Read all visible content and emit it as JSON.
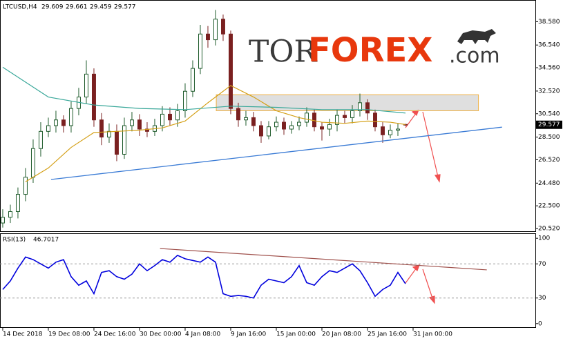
{
  "logo": {
    "part1": "TOR",
    "part2": "FOREX",
    "part3": ".com"
  },
  "chart_data": [
    {
      "type": "candlestick",
      "title": "LTCUSD,H4",
      "quote": [
        29.609,
        29.661,
        29.459,
        29.577
      ],
      "open": [
        21,
        21.5,
        22,
        23.5,
        25,
        27.5,
        29,
        29.5,
        30,
        29.5,
        31,
        32,
        34,
        30,
        28.5,
        29,
        27,
        29.5,
        30,
        29.2,
        29,
        29.5,
        30.5,
        30,
        30.8,
        32.5,
        34.5,
        37.5,
        37,
        38.8,
        37.5,
        31,
        30,
        30.2,
        29.5,
        28.6,
        29.4,
        29.8,
        29.2,
        29.5,
        29.8,
        30.6,
        29.4,
        29.2,
        29.6,
        30.4,
        30.2,
        30.8,
        31.5,
        30.6,
        29.4,
        28.7,
        29.1,
        29.609
      ],
      "high": [
        22.2,
        22.6,
        24.1,
        25.8,
        28.3,
        29.8,
        30.2,
        30.8,
        30.4,
        31.6,
        32.8,
        35.2,
        34.5,
        30.6,
        29.7,
        29.6,
        30.2,
        30.7,
        30.5,
        29.8,
        30.1,
        31.2,
        31.1,
        31.4,
        33.2,
        35.2,
        38.3,
        38.2,
        39.6,
        39.2,
        37.8,
        31.5,
        30.8,
        30.7,
        29.9,
        29.9,
        30.3,
        30.2,
        29.9,
        30.3,
        31.1,
        30.9,
        29.8,
        30.1,
        30.9,
        30.8,
        31.3,
        32.3,
        31.8,
        30.9,
        29.8,
        29.6,
        29.7,
        29.661
      ],
      "low": [
        20.6,
        21.0,
        21.4,
        22.9,
        24.5,
        26.8,
        28.5,
        28.9,
        28.9,
        28.9,
        30.4,
        31.4,
        29.4,
        27.8,
        28.0,
        26.4,
        26.6,
        29.0,
        28.6,
        28.5,
        28.6,
        29.0,
        29.5,
        29.4,
        30.2,
        32.0,
        34.0,
        36.3,
        36.5,
        36.9,
        30.5,
        29.4,
        29.5,
        29.0,
        28.0,
        28.3,
        29.0,
        28.7,
        28.8,
        29.1,
        29.4,
        29.0,
        28.2,
        28.6,
        29.0,
        29.7,
        29.7,
        30.3,
        30.0,
        29.0,
        28.0,
        28.4,
        28.6,
        29.459
      ],
      "close": [
        21.5,
        22,
        23.5,
        25,
        27.5,
        29,
        29.5,
        30,
        29.5,
        31,
        32,
        34,
        30,
        28.5,
        29,
        27,
        29.5,
        30,
        29.2,
        29,
        29.5,
        30.5,
        30,
        30.8,
        32.5,
        34.5,
        37.5,
        37,
        38.8,
        37.5,
        31,
        30,
        30.2,
        29.5,
        28.6,
        29.4,
        29.8,
        29.2,
        29.5,
        29.8,
        30.6,
        29.4,
        29.2,
        29.6,
        30.4,
        30.2,
        30.8,
        31.5,
        30.6,
        29.4,
        28.7,
        29.1,
        29.2,
        29.577
      ],
      "up_color": "#1d5a2a",
      "down_color": "#7a2020",
      "overlays": [
        {
          "color": "#d4a017",
          "x": [
            3,
            6,
            9,
            12,
            15,
            18,
            21,
            24,
            27,
            30,
            33,
            36,
            39,
            42,
            45,
            48,
            51,
            53
          ],
          "values": [
            24.6,
            25.8,
            27.6,
            28.9,
            29.0,
            29.1,
            29.3,
            29.9,
            31.5,
            33.0,
            32.0,
            30.8,
            30.2,
            29.8,
            29.7,
            29.9,
            29.8,
            29.6
          ]
        },
        {
          "color": "#3aa89a",
          "x": [
            0,
            6,
            12,
            18,
            24,
            30,
            36,
            42,
            48,
            53
          ],
          "values": [
            34.6,
            32.0,
            31.3,
            31.0,
            30.9,
            31.2,
            31.1,
            30.9,
            30.9,
            30.6
          ]
        }
      ],
      "zone": {
        "x": [
          28.1,
          62.6
        ],
        "y": [
          30.8,
          32.2
        ]
      },
      "trendline": {
        "color": "#3a7bd5",
        "x": [
          6.36,
          65.7
        ],
        "y": [
          24.8,
          29.37
        ]
      },
      "xlim": [
        -0.36,
        70.09
      ],
      "ylim": [
        20.28,
        40.41
      ],
      "yticks": [
        {
          "value": 20.52,
          "label": "20.520"
        },
        {
          "value": 22.5,
          "label": "22.500"
        },
        {
          "value": 24.48,
          "label": "24.480"
        },
        {
          "value": 26.52,
          "label": "26.520"
        },
        {
          "value": 28.5,
          "label": "28.500"
        },
        {
          "value": 30.54,
          "label": "30.540"
        },
        {
          "value": 32.52,
          "label": "32.520"
        },
        {
          "value": 34.56,
          "label": "34.560"
        },
        {
          "value": 36.54,
          "label": "36.540"
        },
        {
          "value": 38.58,
          "label": "38.580"
        }
      ]
    },
    {
      "type": "line",
      "title": "RSI(13)",
      "current": 46.7017,
      "color": "#0000dd",
      "values": [
        40,
        50,
        65,
        78,
        75,
        70,
        65,
        72,
        75,
        55,
        45,
        50,
        35,
        60,
        62,
        55,
        52,
        58,
        70,
        62,
        68,
        75,
        72,
        80,
        76,
        74,
        72,
        78,
        72,
        35,
        32,
        33,
        32,
        30,
        45,
        52,
        50,
        48,
        55,
        68,
        48,
        45,
        55,
        62,
        60,
        65,
        70,
        62,
        48,
        32,
        40,
        45,
        60,
        46.7017
      ],
      "levels": [
        70,
        30
      ],
      "trendline": {
        "color": "#a0524d",
        "x": [
          20.7,
          63.7
        ],
        "y": [
          88,
          63
        ]
      },
      "xlim": [
        -0.36,
        70.09
      ],
      "ylim": [
        -5,
        105
      ],
      "yticks": [
        0,
        30,
        70,
        100
      ],
      "xticks": [
        {
          "value": 0,
          "label": "14 Dec 2018"
        },
        {
          "value": 6,
          "label": "19 Dec 08:00"
        },
        {
          "value": 12,
          "label": "24 Dec 16:00"
        },
        {
          "value": 18,
          "label": "30 Dec 00:00"
        },
        {
          "value": 24,
          "label": "4 Jan 08:00"
        },
        {
          "value": 30,
          "label": "9 Jan 16:00"
        },
        {
          "value": 36,
          "label": "15 Jan 00:00"
        },
        {
          "value": 42,
          "label": "20 Jan 08:00"
        },
        {
          "value": 48,
          "label": "25 Jan 16:00"
        },
        {
          "value": 54,
          "label": "31 Jan 00:00"
        }
      ]
    }
  ]
}
